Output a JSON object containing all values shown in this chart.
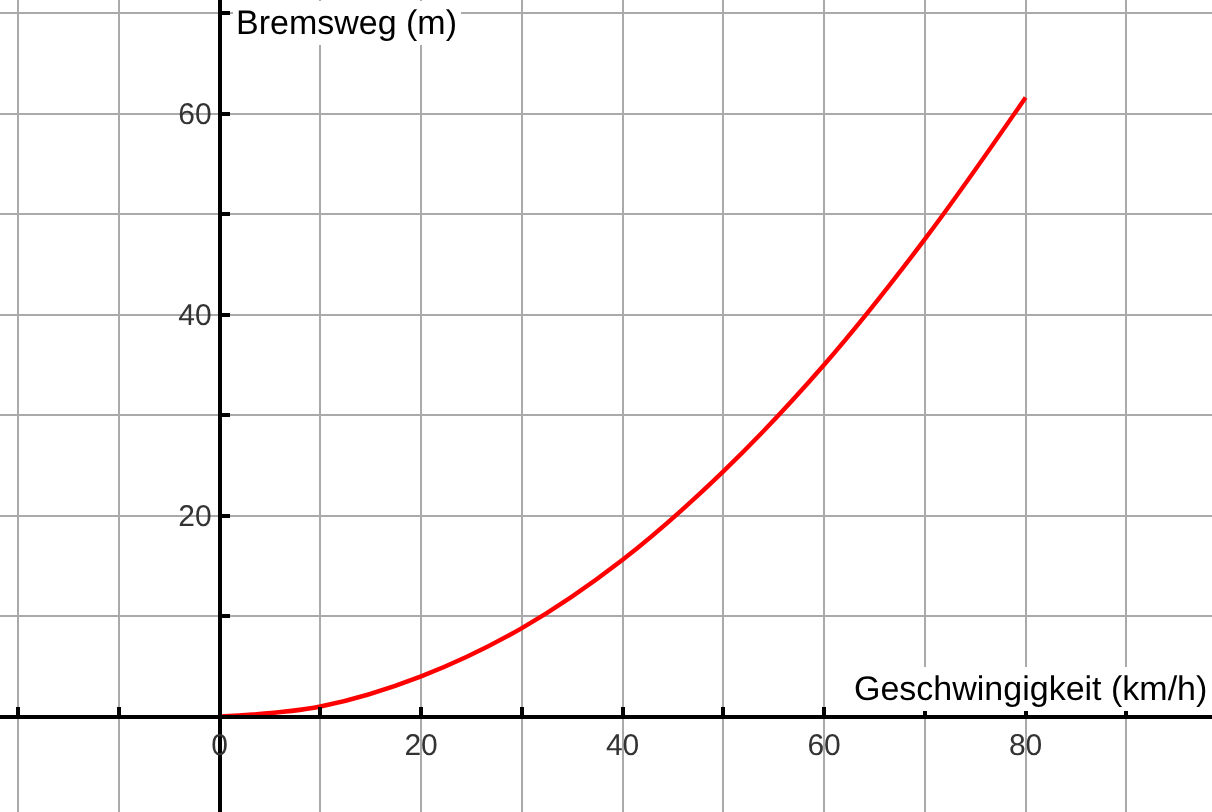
{
  "chart_data": {
    "type": "line",
    "xlabel": "Geschwingigkeit (km/h)",
    "ylabel": "Bremsweg (m)",
    "x": [
      0,
      10,
      20,
      30,
      40,
      50,
      60,
      70,
      80
    ],
    "series": [
      {
        "color": "#ff0000",
        "values": [
          0,
          1,
          4,
          8.8,
          15.6,
          24.4,
          35,
          47.5,
          61.6
        ]
      }
    ],
    "xlim": [
      -21.8,
      98.5
    ],
    "ylim": [
      -9.5,
      71.3
    ],
    "xticks": [
      {
        "value": -20,
        "label": null
      },
      {
        "value": -10,
        "label": null
      },
      0,
      {
        "value": 10,
        "label": null
      },
      20,
      {
        "value": 30,
        "label": null
      },
      40,
      {
        "value": 50,
        "label": null
      },
      60,
      {
        "value": 70,
        "label": null
      },
      80,
      {
        "value": 90,
        "label": null
      }
    ],
    "yticks": [
      {
        "value": 0,
        "label": null
      },
      {
        "value": 10,
        "label": null
      },
      20,
      {
        "value": 30,
        "label": null
      },
      40,
      {
        "value": 50,
        "label": null
      },
      60,
      {
        "value": 70,
        "label": null
      }
    ],
    "grid": true,
    "marker": "none",
    "line_style": "solid"
  }
}
